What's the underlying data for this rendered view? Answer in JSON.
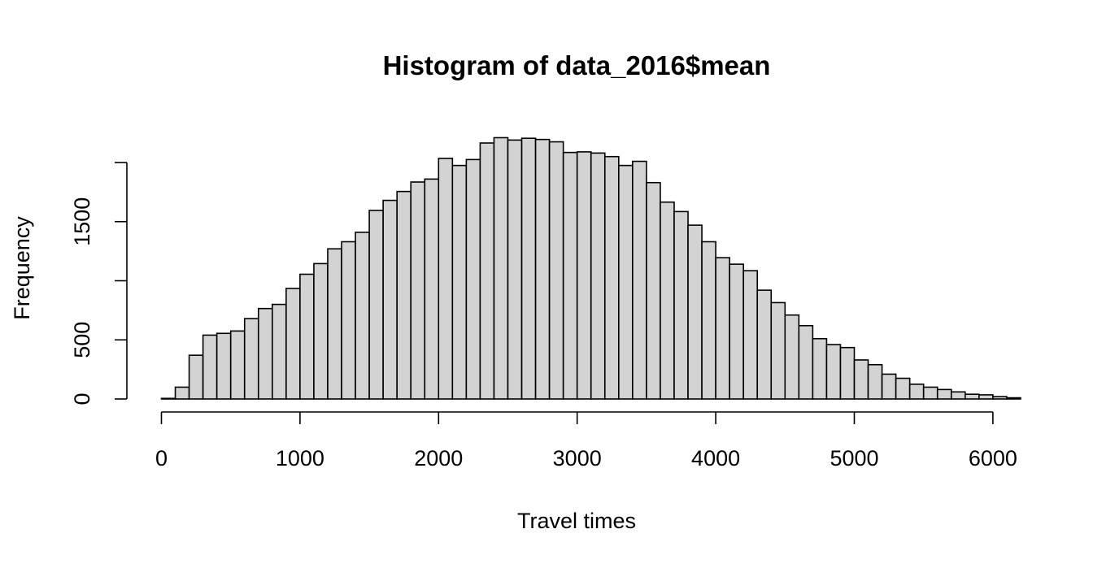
{
  "chart_data": {
    "type": "bar",
    "title": "Histogram of data_2016$mean",
    "xlabel": "Travel times",
    "ylabel": "Frequency",
    "xlim": [
      0,
      6250
    ],
    "ylim": [
      0,
      2000
    ],
    "x_ticks": [
      0,
      1000,
      2000,
      3000,
      4000,
      5000,
      6000
    ],
    "x_tick_labels": [
      "0",
      "1000",
      "2000",
      "3000",
      "4000",
      "5000",
      "6000"
    ],
    "y_ticks": [
      0,
      500,
      1000,
      1500,
      2000
    ],
    "y_tick_labels": [
      "0",
      "500",
      "",
      "1500",
      ""
    ],
    "bin_width": 100,
    "bin_start": 0,
    "values": [
      5,
      100,
      370,
      540,
      555,
      575,
      680,
      765,
      800,
      935,
      1055,
      1145,
      1270,
      1330,
      1410,
      1595,
      1680,
      1755,
      1835,
      1860,
      2035,
      1975,
      2025,
      2165,
      2210,
      2190,
      2205,
      2195,
      2175,
      2085,
      2090,
      2080,
      2050,
      1975,
      2010,
      1830,
      1665,
      1585,
      1470,
      1330,
      1195,
      1140,
      1085,
      920,
      815,
      710,
      620,
      510,
      460,
      435,
      330,
      290,
      210,
      175,
      125,
      100,
      80,
      60,
      40,
      35,
      20,
      10
    ],
    "bar_fill": "#d3d3d3",
    "bar_stroke": "#000000",
    "grid": false,
    "legend": "none"
  }
}
